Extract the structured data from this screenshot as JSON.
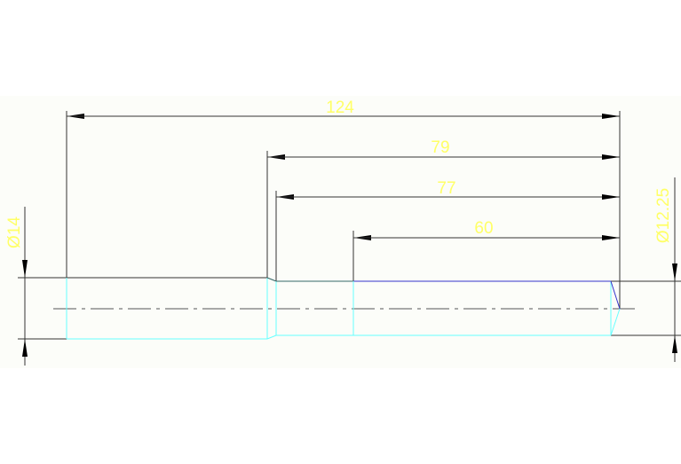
{
  "drawing": {
    "dimensions": {
      "overall_length": "124",
      "length_79": "79",
      "length_77": "77",
      "length_60": "60",
      "diameter_left": "Ø14",
      "diameter_right": "Ø12.25"
    },
    "colors": {
      "background": "#ffffff",
      "band": "#fcfdf9",
      "dimension_text": "#ffff66",
      "dimension_lines": "#333333",
      "outline_cyan": "#66ffff",
      "outline_blue": "#3333cc",
      "centerline": "#555555"
    }
  }
}
